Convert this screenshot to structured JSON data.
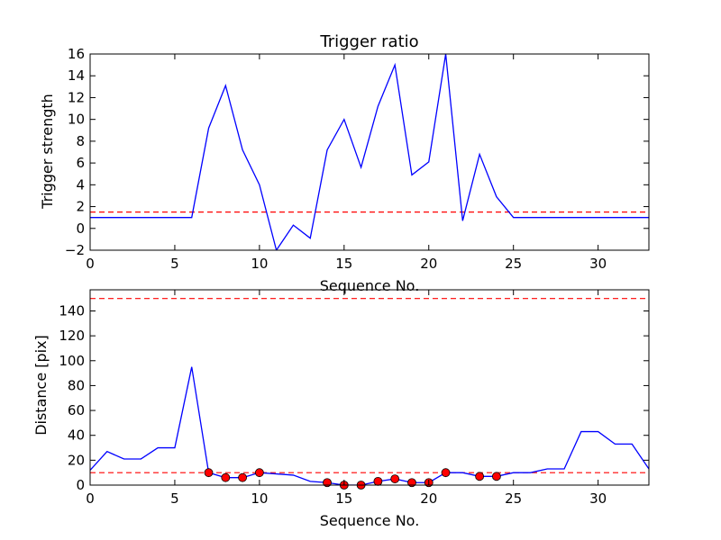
{
  "chart_data": [
    {
      "type": "line",
      "title": "Trigger ratio",
      "xlabel": "Sequence No.",
      "ylabel": "Trigger strength",
      "xlim": [
        0,
        33
      ],
      "ylim": [
        -2,
        16
      ],
      "xticks": [
        0,
        5,
        10,
        15,
        20,
        25,
        30
      ],
      "yticks": [
        -2,
        0,
        2,
        4,
        6,
        8,
        10,
        12,
        14,
        16
      ],
      "grid": false,
      "series": [
        {
          "color": "#0000ff",
          "x": [
            0,
            1,
            2,
            3,
            4,
            5,
            6,
            7,
            8,
            9,
            10,
            11,
            12,
            13,
            14,
            15,
            16,
            17,
            18,
            19,
            20,
            21,
            22,
            23,
            24,
            25,
            26,
            27,
            28,
            29,
            30,
            31,
            32,
            33
          ],
          "values": [
            1,
            1,
            1,
            1,
            1,
            1,
            1,
            9.2,
            13.1,
            7.2,
            4.0,
            -2.0,
            0.3,
            -0.9,
            7.2,
            10.0,
            5.6,
            11.2,
            15.0,
            4.9,
            6.1,
            16.0,
            0.7,
            6.8,
            2.9,
            1,
            1,
            1,
            1,
            1,
            1,
            1,
            1,
            1
          ]
        }
      ],
      "hlines": [
        {
          "y": 1.5,
          "color": "#ff0000",
          "style": "dashed"
        }
      ]
    },
    {
      "type": "line",
      "title": "",
      "xlabel": "Sequence No.",
      "ylabel": "Distance [pix]",
      "xlim": [
        0,
        33
      ],
      "ylim": [
        0,
        157
      ],
      "xticks": [
        0,
        5,
        10,
        15,
        20,
        25,
        30
      ],
      "yticks": [
        0,
        20,
        40,
        60,
        80,
        100,
        120,
        140
      ],
      "grid": false,
      "series": [
        {
          "color": "#0000ff",
          "x": [
            0,
            1,
            2,
            3,
            4,
            5,
            6,
            7,
            8,
            9,
            10,
            11,
            12,
            13,
            14,
            15,
            16,
            17,
            18,
            19,
            20,
            21,
            22,
            23,
            24,
            25,
            26,
            27,
            28,
            29,
            30,
            31,
            32,
            33
          ],
          "values": [
            12,
            27,
            21,
            21,
            30,
            30,
            95,
            10,
            6,
            6,
            10,
            9,
            8,
            3,
            2,
            0,
            0,
            3,
            5,
            2,
            2,
            10,
            10,
            7,
            7,
            10,
            10,
            13,
            13,
            43,
            43,
            33,
            33,
            13
          ]
        }
      ],
      "markers": {
        "color": "#ff0000",
        "x": [
          7,
          8,
          9,
          10,
          14,
          15,
          16,
          17,
          18,
          19,
          20,
          21,
          23,
          24
        ],
        "y": [
          10,
          6,
          6,
          10,
          2,
          0,
          0,
          3,
          5,
          2,
          2,
          10,
          7,
          7
        ]
      },
      "hlines": [
        {
          "y": 150,
          "color": "#ff0000",
          "style": "dashed"
        },
        {
          "y": 10,
          "color": "#ff0000",
          "style": "dashed"
        }
      ]
    }
  ]
}
